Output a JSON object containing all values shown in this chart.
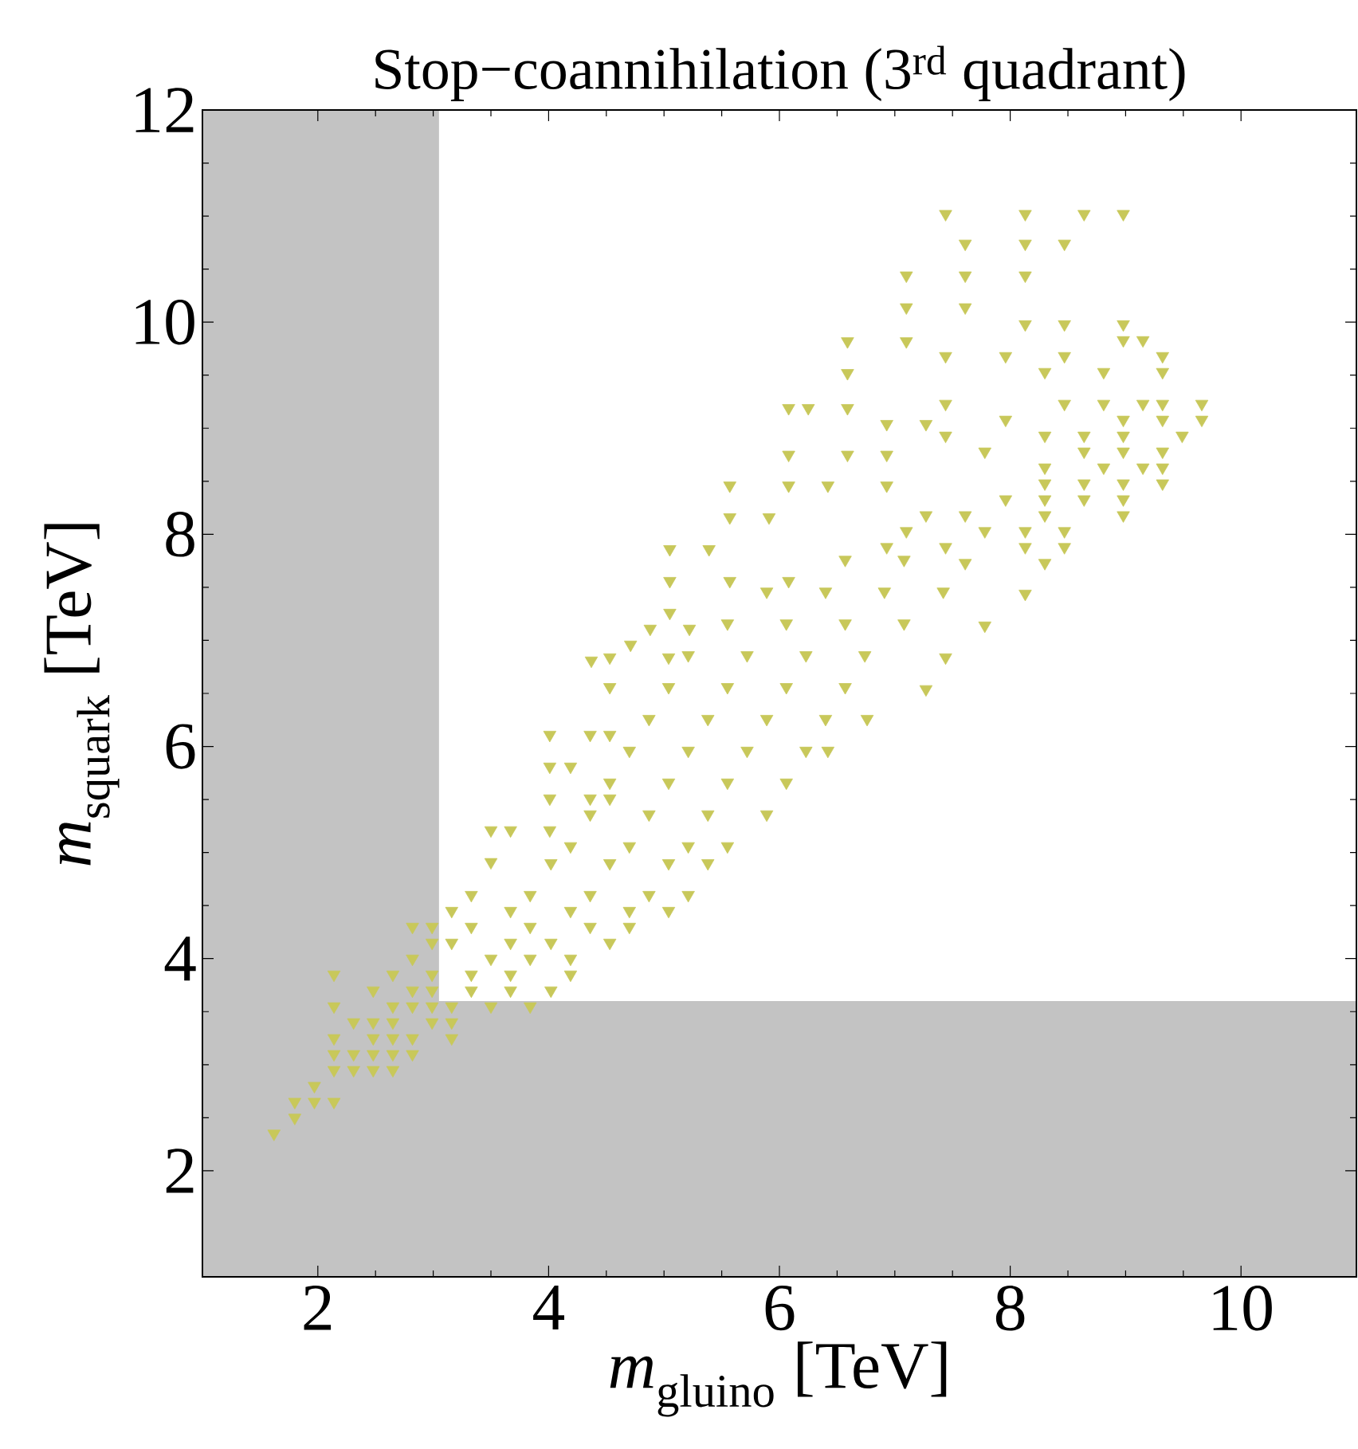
{
  "chart_data": {
    "type": "scatter",
    "title": "Stop−coannihilation (3$^{rd}$ quadrant)",
    "xlabel": "*m*$_{gluino}$ [TeV]",
    "ylabel": "*m*$_{squark}$ [TeV]",
    "xlim": [
      1,
      11
    ],
    "ylim": [
      1,
      12
    ],
    "xticks": [
      2,
      4,
      6,
      8,
      10
    ],
    "yticks": [
      2,
      4,
      6,
      8,
      10,
      12
    ],
    "marker": "triangle",
    "color": "#c8c85a",
    "bands": [
      {
        "axis": "x",
        "from": 1,
        "to": 3.05,
        "color": "#c3c3c3"
      },
      {
        "axis": "y",
        "from": 1,
        "to": 3.6,
        "color": "#c3c3c3"
      }
    ],
    "x": [
      1.62,
      1.8,
      1.8,
      1.97,
      2.14,
      1.97,
      2.14,
      2.31,
      2.48,
      2.65,
      2.14,
      2.31,
      2.48,
      2.65,
      2.82,
      2.14,
      2.48,
      2.65,
      2.82,
      3.16,
      2.31,
      2.48,
      2.65,
      2.99,
      3.16,
      2.14,
      2.65,
      2.82,
      2.99,
      3.16,
      3.5,
      3.84,
      2.48,
      2.82,
      2.99,
      3.33,
      3.67,
      4.02,
      2.14,
      2.65,
      2.99,
      3.33,
      3.67,
      4.19,
      2.82,
      3.5,
      3.84,
      4.19,
      2.99,
      3.16,
      3.67,
      4.02,
      4.53,
      2.82,
      2.99,
      3.33,
      3.84,
      4.36,
      4.7,
      3.16,
      3.67,
      4.19,
      4.7,
      5.04,
      3.33,
      3.84,
      4.36,
      4.87,
      5.21,
      3.5,
      4.02,
      4.53,
      5.04,
      5.38,
      3.5,
      3.67,
      4.01,
      4.01,
      4.36,
      4.53,
      4.01,
      4.19,
      4.01,
      4.36,
      4.53,
      4.53,
      5.04,
      4.53,
      5.04,
      4.37,
      4.71,
      4.88,
      5.22,
      5.05,
      5.05,
      5.57,
      6.08,
      5.05,
      5.39,
      5.57,
      5.91,
      5.57,
      6.08,
      6.42,
      6.93,
      6.08,
      6.59,
      6.93,
      6.93,
      7.27,
      6.08,
      6.25,
      6.59,
      6.59,
      6.59,
      7.1,
      7.44,
      8.13,
      8.64,
      8.98,
      7.61,
      8.13,
      8.47,
      7.1,
      7.61,
      8.13,
      7.1,
      7.61,
      8.13,
      8.47,
      8.98,
      8.98,
      9.15,
      7.44,
      7.96,
      8.47,
      9.32,
      8.3,
      8.81,
      9.32,
      7.44,
      8.47,
      8.81,
      9.15,
      9.32,
      9.66,
      7.96,
      8.98,
      9.32,
      9.66,
      7.44,
      8.3,
      8.64,
      8.98,
      9.49,
      7.78,
      8.64,
      8.98,
      9.32,
      8.3,
      8.81,
      9.15,
      9.32,
      8.3,
      8.64,
      8.98,
      9.32,
      7.96,
      8.3,
      8.64,
      8.98,
      7.27,
      7.61,
      8.3,
      8.98,
      7.1,
      7.78,
      8.13,
      8.47,
      6.93,
      7.44,
      8.13,
      8.47,
      4.19,
      4.7,
      5.21,
      5.55,
      4.36,
      4.87,
      5.38,
      5.89,
      4.53,
      5.04,
      5.55,
      6.06,
      4.7,
      5.21,
      5.72,
      6.23,
      6.42,
      4.87,
      5.38,
      5.89,
      6.4,
      6.76,
      5.55,
      6.06,
      6.57,
      7.27,
      5.21,
      5.72,
      6.23,
      6.74,
      7.44,
      5.55,
      6.06,
      6.57,
      7.08,
      7.78,
      5.89,
      6.4,
      6.91,
      7.42,
      8.13,
      6.57,
      7.08,
      7.61,
      8.3
    ],
    "values": [
      2.35,
      2.5,
      2.65,
      2.65,
      2.65,
      2.8,
      2.95,
      2.95,
      2.95,
      2.95,
      3.1,
      3.1,
      3.1,
      3.1,
      3.1,
      3.25,
      3.25,
      3.25,
      3.25,
      3.25,
      3.4,
      3.4,
      3.4,
      3.4,
      3.4,
      3.55,
      3.55,
      3.55,
      3.55,
      3.55,
      3.55,
      3.55,
      3.7,
      3.7,
      3.7,
      3.7,
      3.7,
      3.7,
      3.85,
      3.85,
      3.85,
      3.85,
      3.85,
      3.85,
      4.0,
      4.0,
      4.0,
      4.0,
      4.15,
      4.15,
      4.15,
      4.15,
      4.15,
      4.3,
      4.3,
      4.3,
      4.3,
      4.3,
      4.3,
      4.45,
      4.45,
      4.45,
      4.45,
      4.45,
      4.6,
      4.6,
      4.6,
      4.6,
      4.6,
      4.91,
      4.9,
      4.9,
      4.9,
      4.9,
      5.21,
      5.21,
      5.21,
      5.51,
      5.51,
      5.51,
      5.81,
      5.81,
      6.11,
      6.11,
      6.11,
      6.56,
      6.56,
      6.84,
      6.84,
      6.81,
      6.96,
      7.11,
      7.11,
      7.26,
      7.56,
      7.56,
      7.56,
      7.86,
      7.86,
      8.16,
      8.16,
      8.46,
      8.46,
      8.46,
      8.46,
      8.75,
      8.75,
      8.75,
      9.04,
      9.04,
      9.19,
      9.19,
      9.19,
      9.52,
      9.82,
      9.82,
      11.02,
      11.02,
      11.02,
      11.02,
      10.74,
      10.74,
      10.74,
      10.44,
      10.44,
      10.44,
      10.14,
      10.14,
      9.98,
      9.98,
      9.98,
      9.83,
      9.83,
      9.68,
      9.68,
      9.68,
      9.68,
      9.53,
      9.53,
      9.53,
      9.23,
      9.23,
      9.23,
      9.23,
      9.23,
      9.23,
      9.08,
      9.08,
      9.08,
      9.08,
      8.93,
      8.93,
      8.93,
      8.93,
      8.93,
      8.78,
      8.78,
      8.78,
      8.78,
      8.63,
      8.63,
      8.63,
      8.63,
      8.48,
      8.48,
      8.48,
      8.48,
      8.33,
      8.33,
      8.33,
      8.33,
      8.18,
      8.18,
      8.18,
      8.18,
      8.03,
      8.03,
      8.03,
      8.03,
      7.88,
      7.88,
      7.88,
      7.88,
      5.06,
      5.06,
      5.06,
      5.06,
      5.36,
      5.36,
      5.36,
      5.36,
      5.66,
      5.66,
      5.66,
      5.66,
      5.96,
      5.96,
      5.96,
      5.96,
      5.96,
      6.26,
      6.26,
      6.26,
      6.26,
      6.26,
      6.56,
      6.56,
      6.56,
      6.54,
      6.86,
      6.86,
      6.86,
      6.86,
      6.84,
      7.16,
      7.16,
      7.16,
      7.16,
      7.14,
      7.46,
      7.46,
      7.46,
      7.46,
      7.44,
      7.76,
      7.76,
      7.73,
      7.73
    ]
  }
}
